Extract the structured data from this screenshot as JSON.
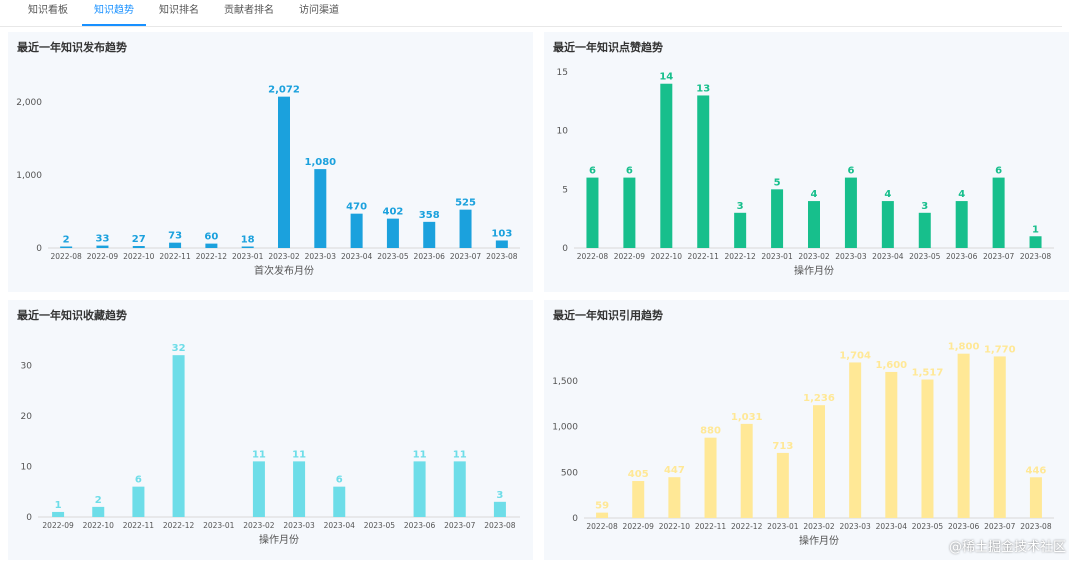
{
  "tabs": [
    {
      "label": "知识看板",
      "active": false
    },
    {
      "label": "知识趋势",
      "active": true
    },
    {
      "label": "知识排名",
      "active": false
    },
    {
      "label": "贡献者排名",
      "active": false
    },
    {
      "label": "访问渠道",
      "active": false
    }
  ],
  "watermark": "@稀土掘金技术社区",
  "chart_data": [
    {
      "type": "bar",
      "title": "最近一年知识发布趋势",
      "xlabel": "首次发布月份",
      "ylabel": "",
      "color": "#1ba1dd",
      "ylim": [
        0,
        2300
      ],
      "yticks": [
        0,
        1000,
        2000
      ],
      "ytick_labels": [
        "0",
        "1,000",
        "2,000"
      ],
      "categories": [
        "2022-08",
        "2022-09",
        "2022-10",
        "2022-11",
        "2022-12",
        "2023-01",
        "2023-02",
        "2023-03",
        "2023-04",
        "2023-05",
        "2023-06",
        "2023-07",
        "2023-08"
      ],
      "values": [
        2,
        33,
        27,
        73,
        60,
        18,
        2072,
        1080,
        470,
        402,
        358,
        525,
        103
      ],
      "labels": [
        "2",
        "33",
        "27",
        "73",
        "60",
        "18",
        "2,072",
        "1,080",
        "470",
        "402",
        "358",
        "525",
        "103"
      ]
    },
    {
      "type": "bar",
      "title": "最近一年知识点赞趋势",
      "xlabel": "操作月份",
      "ylabel": "",
      "color": "#17bf8c",
      "ylim": [
        0,
        15
      ],
      "yticks": [
        0,
        5,
        10,
        15
      ],
      "ytick_labels": [
        "0",
        "5",
        "10",
        "15"
      ],
      "categories": [
        "2022-08",
        "2022-09",
        "2022-10",
        "2022-11",
        "2022-12",
        "2023-01",
        "2023-02",
        "2023-03",
        "2023-04",
        "2023-05",
        "2023-06",
        "2023-07",
        "2023-08"
      ],
      "values": [
        6,
        6,
        14,
        13,
        3,
        5,
        4,
        6,
        4,
        3,
        4,
        6,
        1
      ],
      "labels": [
        "6",
        "6",
        "14",
        "13",
        "3",
        "5",
        "4",
        "6",
        "4",
        "3",
        "4",
        "6",
        "1"
      ]
    },
    {
      "type": "bar",
      "title": "最近一年知识收藏趋势",
      "xlabel": "操作月份",
      "ylabel": "",
      "color": "#6ddde8",
      "ylim": [
        0,
        35
      ],
      "yticks": [
        0,
        10,
        20,
        30
      ],
      "ytick_labels": [
        "0",
        "10",
        "20",
        "30"
      ],
      "categories": [
        "2022-09",
        "2022-10",
        "2022-11",
        "2022-12",
        "2023-01",
        "2023-02",
        "2023-03",
        "2023-04",
        "2023-05",
        "2023-06",
        "2023-07",
        "2023-08"
      ],
      "values": [
        1,
        2,
        6,
        32,
        0,
        11,
        11,
        6,
        0,
        11,
        11,
        3
      ],
      "labels": [
        "1",
        "2",
        "6",
        "32",
        "",
        "11",
        "11",
        "6",
        "",
        "11",
        "11",
        "3"
      ]
    },
    {
      "type": "bar",
      "title": "最近一年知识引用趋势",
      "xlabel": "操作月份",
      "ylabel": "",
      "color": "#ffe896",
      "ylim": [
        0,
        1950
      ],
      "yticks": [
        0,
        500,
        1000,
        1500
      ],
      "ytick_labels": [
        "0",
        "500",
        "1,000",
        "1,500"
      ],
      "categories": [
        "2022-08",
        "2022-09",
        "2022-10",
        "2022-11",
        "2022-12",
        "2023-01",
        "2023-02",
        "2023-03",
        "2023-04",
        "2023-05",
        "2023-06",
        "2023-07",
        "2023-08"
      ],
      "values": [
        59,
        405,
        447,
        880,
        1031,
        713,
        1236,
        1704,
        1600,
        1517,
        1800,
        1770,
        446
      ],
      "labels": [
        "59",
        "405",
        "447",
        "880",
        "1,031",
        "713",
        "1,236",
        "1,704",
        "1,600",
        "1,517",
        "1,800",
        "1,770",
        "446"
      ]
    }
  ]
}
